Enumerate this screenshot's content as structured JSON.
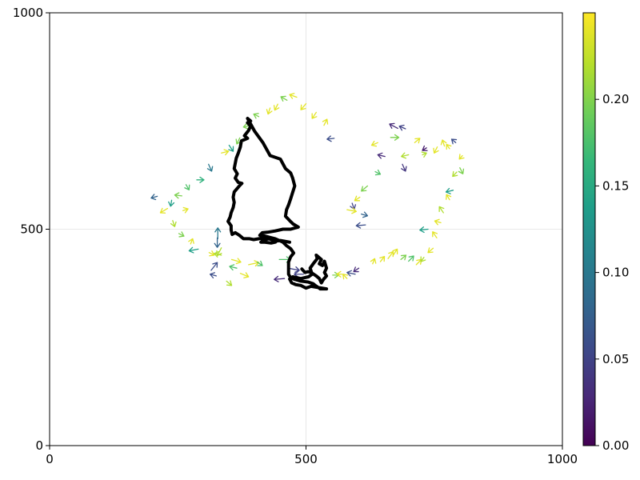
{
  "chart_data": {
    "type": "quiver",
    "title": "",
    "xlabel": "",
    "ylabel": "",
    "xlim": [
      0,
      1000
    ],
    "ylim": [
      0,
      1000
    ],
    "xticks": [
      {
        "v": 0,
        "label": "0"
      },
      {
        "v": 500,
        "label": "500"
      },
      {
        "v": 1000,
        "label": "1000"
      }
    ],
    "yticks": [
      {
        "v": 0,
        "label": "0"
      },
      {
        "v": 500,
        "label": "500"
      },
      {
        "v": 1000,
        "label": "1000"
      }
    ],
    "grid": true,
    "trajectory_color": "#000000",
    "trajectory": [
      [
        468,
        470
      ],
      [
        450,
        474
      ],
      [
        440,
        472
      ],
      [
        428,
        478
      ],
      [
        420,
        476
      ],
      [
        414,
        472
      ],
      [
        412,
        470
      ],
      [
        420,
        470
      ],
      [
        432,
        468
      ],
      [
        440,
        470
      ],
      [
        430,
        478
      ],
      [
        420,
        480
      ],
      [
        408,
        478
      ],
      [
        398,
        476
      ],
      [
        390,
        478
      ],
      [
        378,
        478
      ],
      [
        370,
        486
      ],
      [
        362,
        492
      ],
      [
        356,
        488
      ],
      [
        354,
        498
      ],
      [
        354,
        508
      ],
      [
        348,
        518
      ],
      [
        352,
        528
      ],
      [
        354,
        538
      ],
      [
        358,
        550
      ],
      [
        360,
        562
      ],
      [
        358,
        574
      ],
      [
        360,
        586
      ],
      [
        370,
        600
      ],
      [
        375,
        606
      ],
      [
        368,
        608
      ],
      [
        362,
        618
      ],
      [
        366,
        628
      ],
      [
        360,
        640
      ],
      [
        362,
        652
      ],
      [
        364,
        664
      ],
      [
        368,
        676
      ],
      [
        372,
        690
      ],
      [
        374,
        704
      ],
      [
        386,
        710
      ],
      [
        380,
        716
      ],
      [
        388,
        728
      ],
      [
        392,
        738
      ],
      [
        386,
        746
      ],
      [
        392,
        750
      ],
      [
        386,
        756
      ],
      [
        400,
        726
      ],
      [
        416,
        700
      ],
      [
        430,
        670
      ],
      [
        450,
        662
      ],
      [
        460,
        640
      ],
      [
        470,
        630
      ],
      [
        474,
        618
      ],
      [
        478,
        600
      ],
      [
        474,
        585
      ],
      [
        470,
        570
      ],
      [
        466,
        556
      ],
      [
        462,
        545
      ],
      [
        460,
        530
      ],
      [
        468,
        520
      ],
      [
        475,
        512
      ],
      [
        485,
        505
      ],
      [
        470,
        500
      ],
      [
        455,
        500
      ],
      [
        440,
        496
      ],
      [
        425,
        493
      ],
      [
        415,
        492
      ],
      [
        410,
        486
      ],
      [
        420,
        484
      ],
      [
        440,
        478
      ],
      [
        455,
        470
      ],
      [
        462,
        462
      ],
      [
        470,
        455
      ],
      [
        476,
        445
      ],
      [
        470,
        436
      ],
      [
        466,
        424
      ],
      [
        466,
        410
      ],
      [
        466,
        396
      ],
      [
        470,
        388
      ],
      [
        478,
        384
      ],
      [
        490,
        380
      ],
      [
        504,
        378
      ],
      [
        514,
        374
      ],
      [
        518,
        370
      ],
      [
        528,
        362
      ],
      [
        532,
        362
      ],
      [
        540,
        362
      ],
      [
        510,
        368
      ],
      [
        500,
        364
      ],
      [
        490,
        370
      ],
      [
        480,
        372
      ],
      [
        472,
        376
      ],
      [
        468,
        385
      ],
      [
        474,
        390
      ],
      [
        490,
        386
      ],
      [
        505,
        390
      ],
      [
        512,
        396
      ],
      [
        508,
        410
      ],
      [
        514,
        420
      ],
      [
        518,
        426
      ],
      [
        522,
        432
      ],
      [
        520,
        440
      ],
      [
        530,
        430
      ],
      [
        526,
        420
      ],
      [
        532,
        416
      ],
      [
        536,
        426
      ],
      [
        540,
        410
      ],
      [
        536,
        400
      ],
      [
        540,
        392
      ],
      [
        534,
        384
      ],
      [
        530,
        376
      ],
      [
        526,
        386
      ],
      [
        520,
        392
      ],
      [
        510,
        400
      ],
      [
        504,
        402
      ],
      [
        498,
        400
      ],
      [
        492,
        408
      ]
    ],
    "arrows": [
      [
        328,
        478,
        0,
        25,
        0.1
      ],
      [
        327,
        480,
        0,
        -22,
        0.08
      ],
      [
        315,
        405,
        12,
        18,
        0.06
      ],
      [
        335,
        457,
        -8,
        -18,
        0.22
      ],
      [
        388,
        418,
        20,
        5,
        0.24
      ],
      [
        405,
        424,
        10,
        -8,
        0.18
      ],
      [
        448,
        430,
        22,
        0,
        0.18
      ],
      [
        465,
        410,
        22,
        -5,
        0.05
      ],
      [
        458,
        386,
        -20,
        -2,
        0.03
      ],
      [
        495,
        396,
        -18,
        0,
        0.05
      ],
      [
        552,
        394,
        12,
        0,
        0.2
      ],
      [
        570,
        396,
        -10,
        0,
        0.24
      ],
      [
        580,
        386,
        -8,
        10,
        0.24
      ],
      [
        596,
        396,
        -16,
        4,
        0.06
      ],
      [
        603,
        410,
        -10,
        -8,
        0.03
      ],
      [
        630,
        420,
        4,
        12,
        0.24
      ],
      [
        645,
        425,
        8,
        12,
        0.24
      ],
      [
        660,
        432,
        10,
        16,
        0.24
      ],
      [
        670,
        440,
        8,
        14,
        0.24
      ],
      [
        685,
        430,
        10,
        10,
        0.2
      ],
      [
        700,
        426,
        10,
        12,
        0.18
      ],
      [
        715,
        418,
        10,
        12,
        0.24
      ],
      [
        730,
        435,
        -6,
        -10,
        0.22
      ],
      [
        748,
        456,
        -10,
        -10,
        0.24
      ],
      [
        755,
        480,
        -8,
        14,
        0.24
      ],
      [
        738,
        500,
        -16,
        -2,
        0.14
      ],
      [
        763,
        515,
        -12,
        4,
        0.24
      ],
      [
        768,
        538,
        -8,
        14,
        0.22
      ],
      [
        780,
        568,
        -6,
        12,
        0.24
      ],
      [
        787,
        590,
        -14,
        -4,
        0.14
      ],
      [
        794,
        632,
        -8,
        -10,
        0.22
      ],
      [
        800,
        642,
        6,
        -14,
        0.2
      ],
      [
        805,
        670,
        -6,
        -8,
        0.24
      ],
      [
        792,
        700,
        -8,
        8,
        0.06
      ],
      [
        780,
        686,
        -6,
        10,
        0.24
      ],
      [
        770,
        692,
        -4,
        14,
        0.24
      ],
      [
        756,
        690,
        -6,
        -14,
        0.24
      ],
      [
        735,
        688,
        -8,
        -6,
        0.02
      ],
      [
        712,
        700,
        10,
        10,
        0.24
      ],
      [
        727,
        672,
        8,
        4,
        0.22
      ],
      [
        700,
        672,
        -14,
        -4,
        0.22
      ],
      [
        688,
        650,
        6,
        -16,
        0.04
      ],
      [
        654,
        668,
        -14,
        4,
        0.03
      ],
      [
        635,
        633,
        10,
        -6,
        0.18
      ],
      [
        620,
        600,
        -12,
        -12,
        0.2
      ],
      [
        605,
        574,
        -10,
        -8,
        0.24
      ],
      [
        590,
        560,
        4,
        -14,
        0.05
      ],
      [
        580,
        545,
        18,
        -4,
        0.24
      ],
      [
        608,
        535,
        12,
        -4,
        0.08
      ],
      [
        616,
        510,
        -18,
        -2,
        0.06
      ],
      [
        640,
        700,
        -12,
        -6,
        0.24
      ],
      [
        665,
        712,
        16,
        0,
        0.2
      ],
      [
        679,
        733,
        -16,
        10,
        0.03
      ],
      [
        694,
        732,
        -12,
        6,
        0.05
      ],
      [
        555,
        710,
        -14,
        -2,
        0.06
      ],
      [
        535,
        740,
        6,
        14,
        0.24
      ],
      [
        520,
        770,
        -8,
        -14,
        0.24
      ],
      [
        500,
        790,
        -10,
        -14,
        0.24
      ],
      [
        482,
        805,
        -14,
        6,
        0.24
      ],
      [
        463,
        798,
        -12,
        8,
        0.2
      ],
      [
        445,
        789,
        -6,
        -14,
        0.24
      ],
      [
        430,
        780,
        -4,
        -14,
        0.24
      ],
      [
        408,
        760,
        -10,
        6,
        0.2
      ],
      [
        392,
        740,
        -14,
        -4,
        0.2
      ],
      [
        371,
        711,
        -6,
        -14,
        0.2
      ],
      [
        350,
        694,
        8,
        -14,
        0.14
      ],
      [
        335,
        676,
        14,
        4,
        0.24
      ],
      [
        310,
        650,
        6,
        -16,
        0.1
      ],
      [
        287,
        614,
        14,
        0,
        0.16
      ],
      [
        266,
        603,
        6,
        -12,
        0.18
      ],
      [
        258,
        577,
        -14,
        2,
        0.2
      ],
      [
        238,
        567,
        -2,
        -14,
        0.14
      ],
      [
        210,
        576,
        -12,
        -4,
        0.08
      ],
      [
        230,
        548,
        -14,
        -10,
        0.24
      ],
      [
        260,
        543,
        10,
        4,
        0.24
      ],
      [
        240,
        520,
        4,
        -14,
        0.22
      ],
      [
        252,
        490,
        10,
        -6,
        0.2
      ],
      [
        275,
        466,
        4,
        12,
        0.24
      ],
      [
        290,
        454,
        -18,
        -4,
        0.14
      ],
      [
        311,
        446,
        10,
        -6,
        0.24
      ],
      [
        335,
        440,
        -14,
        4,
        0.22
      ],
      [
        355,
        430,
        18,
        -6,
        0.24
      ],
      [
        365,
        410,
        -14,
        4,
        0.18
      ],
      [
        372,
        398,
        16,
        -8,
        0.24
      ],
      [
        345,
        380,
        10,
        -10,
        0.22
      ],
      [
        325,
        392,
        -12,
        4,
        0.06
      ]
    ],
    "colorbar": {
      "min": 0,
      "max": 0.25,
      "ticks": [
        {
          "v": 0.0,
          "label": "0.00"
        },
        {
          "v": 0.05,
          "label": "0.05"
        },
        {
          "v": 0.1,
          "label": "0.10"
        },
        {
          "v": 0.15,
          "label": "0.15"
        },
        {
          "v": 0.2,
          "label": "0.20"
        }
      ],
      "colormap": [
        "#440154",
        "#482878",
        "#3e4989",
        "#31688e",
        "#26828e",
        "#1f9e89",
        "#35b779",
        "#6ece58",
        "#b5de2b",
        "#fde725"
      ]
    }
  }
}
